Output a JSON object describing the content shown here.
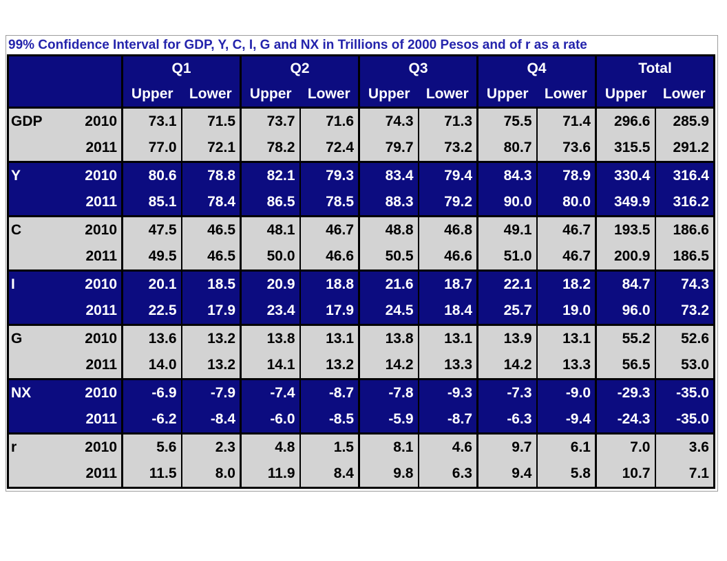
{
  "colors": {
    "header_bg": "#0c0c80",
    "navy_row_bg": "#0c0c80",
    "gray_row_bg": "#d3d3d3",
    "navy_row_text": "#ffffff",
    "gray_row_text": "#000000",
    "title_text": "#2424ac",
    "grid_border": "#000000",
    "outer_frame_border": "#9c9c9c"
  },
  "chart_data": {
    "type": "table",
    "title": "99% Confidence Interval for GDP, Y, C, I, G and NX in Trillions of 2000 Pesos and of r as a rate",
    "column_groups": [
      "Q1",
      "Q2",
      "Q3",
      "Q4",
      "Total"
    ],
    "sub_columns": [
      "Upper",
      "Lower"
    ],
    "row_groups": [
      {
        "var": "GDP",
        "shade": "gray",
        "years": [
          {
            "year": "2010",
            "values": [
              "73.1",
              "71.5",
              "73.7",
              "71.6",
              "74.3",
              "71.3",
              "75.5",
              "71.4",
              "296.6",
              "285.9"
            ]
          },
          {
            "year": "2011",
            "values": [
              "77.0",
              "72.1",
              "78.2",
              "72.4",
              "79.7",
              "73.2",
              "80.7",
              "73.6",
              "315.5",
              "291.2"
            ]
          }
        ]
      },
      {
        "var": "Y",
        "shade": "navy",
        "years": [
          {
            "year": "2010",
            "values": [
              "80.6",
              "78.8",
              "82.1",
              "79.3",
              "83.4",
              "79.4",
              "84.3",
              "78.9",
              "330.4",
              "316.4"
            ]
          },
          {
            "year": "2011",
            "values": [
              "85.1",
              "78.4",
              "86.5",
              "78.5",
              "88.3",
              "79.2",
              "90.0",
              "80.0",
              "349.9",
              "316.2"
            ]
          }
        ]
      },
      {
        "var": "C",
        "shade": "gray",
        "years": [
          {
            "year": "2010",
            "values": [
              "47.5",
              "46.5",
              "48.1",
              "46.7",
              "48.8",
              "46.8",
              "49.1",
              "46.7",
              "193.5",
              "186.6"
            ]
          },
          {
            "year": "2011",
            "values": [
              "49.5",
              "46.5",
              "50.0",
              "46.6",
              "50.5",
              "46.6",
              "51.0",
              "46.7",
              "200.9",
              "186.5"
            ]
          }
        ]
      },
      {
        "var": "I",
        "shade": "navy",
        "years": [
          {
            "year": "2010",
            "values": [
              "20.1",
              "18.5",
              "20.9",
              "18.8",
              "21.6",
              "18.7",
              "22.1",
              "18.2",
              "84.7",
              "74.3"
            ]
          },
          {
            "year": "2011",
            "values": [
              "22.5",
              "17.9",
              "23.4",
              "17.9",
              "24.5",
              "18.4",
              "25.7",
              "19.0",
              "96.0",
              "73.2"
            ]
          }
        ]
      },
      {
        "var": "G",
        "shade": "gray",
        "years": [
          {
            "year": "2010",
            "values": [
              "13.6",
              "13.2",
              "13.8",
              "13.1",
              "13.8",
              "13.1",
              "13.9",
              "13.1",
              "55.2",
              "52.6"
            ]
          },
          {
            "year": "2011",
            "values": [
              "14.0",
              "13.2",
              "14.1",
              "13.2",
              "14.2",
              "13.3",
              "14.2",
              "13.3",
              "56.5",
              "53.0"
            ]
          }
        ]
      },
      {
        "var": "NX",
        "shade": "navy",
        "years": [
          {
            "year": "2010",
            "values": [
              "-6.9",
              "-7.9",
              "-7.4",
              "-8.7",
              "-7.8",
              "-9.3",
              "-7.3",
              "-9.0",
              "-29.3",
              "-35.0"
            ]
          },
          {
            "year": "2011",
            "values": [
              "-6.2",
              "-8.4",
              "-6.0",
              "-8.5",
              "-5.9",
              "-8.7",
              "-6.3",
              "-9.4",
              "-24.3",
              "-35.0"
            ]
          }
        ]
      },
      {
        "var": "r",
        "shade": "gray",
        "years": [
          {
            "year": "2010",
            "values": [
              "5.6",
              "2.3",
              "4.8",
              "1.5",
              "8.1",
              "4.6",
              "9.7",
              "6.1",
              "7.0",
              "3.6"
            ]
          },
          {
            "year": "2011",
            "values": [
              "11.5",
              "8.0",
              "11.9",
              "8.4",
              "9.8",
              "6.3",
              "9.4",
              "5.8",
              "10.7",
              "7.1"
            ]
          }
        ]
      }
    ]
  }
}
